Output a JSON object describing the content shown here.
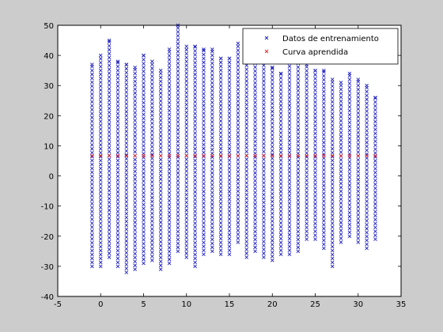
{
  "chart_data": {
    "type": "scatter",
    "title": "",
    "xlabel": "",
    "ylabel": "",
    "xlim": [
      -5,
      35
    ],
    "ylim": [
      -40,
      50
    ],
    "xticks": [
      -5,
      0,
      5,
      10,
      15,
      20,
      25,
      30,
      35
    ],
    "yticks": [
      -40,
      -30,
      -20,
      -10,
      0,
      10,
      20,
      30,
      40,
      50
    ],
    "grid": false,
    "legend_position": "top-right",
    "x_values": [
      -1,
      0,
      1,
      2,
      3,
      4,
      5,
      6,
      7,
      8,
      9,
      10,
      11,
      12,
      13,
      14,
      15,
      16,
      17,
      18,
      19,
      20,
      21,
      22,
      23,
      24,
      25,
      26,
      27,
      28,
      29,
      30,
      31,
      32
    ],
    "series": [
      {
        "name": "Datos de entrenamiento",
        "marker": "x",
        "color": "#1f1fc0",
        "ranges": [
          {
            "x": -1,
            "y_min": -30,
            "y_max": 37
          },
          {
            "x": 0,
            "y_min": -30,
            "y_max": 40
          },
          {
            "x": 1,
            "y_min": -27,
            "y_max": 45
          },
          {
            "x": 2,
            "y_min": -30,
            "y_max": 38
          },
          {
            "x": 3,
            "y_min": -32,
            "y_max": 37
          },
          {
            "x": 4,
            "y_min": -31,
            "y_max": 36
          },
          {
            "x": 5,
            "y_min": -29,
            "y_max": 40
          },
          {
            "x": 6,
            "y_min": -28,
            "y_max": 38
          },
          {
            "x": 7,
            "y_min": -31,
            "y_max": 35
          },
          {
            "x": 8,
            "y_min": -29,
            "y_max": 42
          },
          {
            "x": 9,
            "y_min": -25,
            "y_max": 50
          },
          {
            "x": 10,
            "y_min": -27,
            "y_max": 43
          },
          {
            "x": 11,
            "y_min": -30,
            "y_max": 43
          },
          {
            "x": 12,
            "y_min": -26,
            "y_max": 42
          },
          {
            "x": 13,
            "y_min": -25,
            "y_max": 42
          },
          {
            "x": 14,
            "y_min": -26,
            "y_max": 39
          },
          {
            "x": 15,
            "y_min": -26,
            "y_max": 39
          },
          {
            "x": 16,
            "y_min": -22,
            "y_max": 44
          },
          {
            "x": 17,
            "y_min": -27,
            "y_max": 41
          },
          {
            "x": 18,
            "y_min": -25,
            "y_max": 38
          },
          {
            "x": 19,
            "y_min": -27,
            "y_max": 40
          },
          {
            "x": 20,
            "y_min": -28,
            "y_max": 36
          },
          {
            "x": 21,
            "y_min": -26,
            "y_max": 34
          },
          {
            "x": 22,
            "y_min": -26,
            "y_max": 38
          },
          {
            "x": 23,
            "y_min": -25,
            "y_max": 39
          },
          {
            "x": 24,
            "y_min": -21,
            "y_max": 37
          },
          {
            "x": 25,
            "y_min": -21,
            "y_max": 35
          },
          {
            "x": 26,
            "y_min": -24,
            "y_max": 35
          },
          {
            "x": 27,
            "y_min": -30,
            "y_max": 32
          },
          {
            "x": 28,
            "y_min": -22,
            "y_max": 31
          },
          {
            "x": 29,
            "y_min": -20,
            "y_max": 34
          },
          {
            "x": 30,
            "y_min": -22,
            "y_max": 32
          },
          {
            "x": 31,
            "y_min": -24,
            "y_max": 30
          },
          {
            "x": 32,
            "y_min": -21,
            "y_max": 26
          }
        ],
        "y_step": 1.3
      },
      {
        "name": "Curva aprendida",
        "marker": "x",
        "color": "#e0262b",
        "y": 6.7
      }
    ]
  }
}
